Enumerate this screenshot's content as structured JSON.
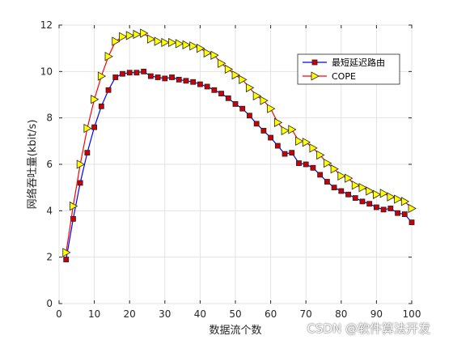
{
  "chart_data": {
    "type": "line",
    "title": "",
    "xlabel": "数据流个数",
    "ylabel": "网络吞吐量(kbit/s)",
    "xlim": [
      0,
      100
    ],
    "ylim": [
      0,
      12
    ],
    "xticks": [
      0,
      10,
      20,
      30,
      40,
      50,
      60,
      70,
      80,
      90,
      100
    ],
    "yticks": [
      0,
      2,
      4,
      6,
      8,
      10,
      12
    ],
    "grid": true,
    "legend_position": "top-right",
    "x": [
      2,
      4,
      6,
      8,
      10,
      12,
      14,
      16,
      18,
      20,
      22,
      24,
      26,
      28,
      30,
      32,
      34,
      36,
      38,
      40,
      42,
      44,
      46,
      48,
      50,
      52,
      54,
      56,
      58,
      60,
      62,
      64,
      66,
      68,
      70,
      72,
      74,
      76,
      78,
      80,
      82,
      84,
      86,
      88,
      90,
      92,
      94,
      96,
      98,
      100
    ],
    "series": [
      {
        "name": "最短延迟路由",
        "color": "#0000ff",
        "marker": "square",
        "marker_fill": "#cc0000",
        "values": [
          1.9,
          3.65,
          5.2,
          6.5,
          7.6,
          8.5,
          9.2,
          9.75,
          9.9,
          9.95,
          9.95,
          10.0,
          9.8,
          9.75,
          9.7,
          9.75,
          9.65,
          9.6,
          9.55,
          9.45,
          9.35,
          9.2,
          9.05,
          8.85,
          8.6,
          8.4,
          8.1,
          7.75,
          7.45,
          7.15,
          6.8,
          6.45,
          6.5,
          6.05,
          6.0,
          5.85,
          5.55,
          5.25,
          5.0,
          4.85,
          4.7,
          4.55,
          4.4,
          4.3,
          4.15,
          4.05,
          4.1,
          3.9,
          3.85,
          3.5
        ]
      },
      {
        "name": "COPE",
        "color": "#ff0000",
        "marker": "triangle-right",
        "marker_fill": "#ffff00",
        "values": [
          2.2,
          4.2,
          6.0,
          7.55,
          8.8,
          9.8,
          10.65,
          11.3,
          11.5,
          11.55,
          11.6,
          11.65,
          11.4,
          11.3,
          11.25,
          11.25,
          11.2,
          11.15,
          11.1,
          11.0,
          10.8,
          10.7,
          10.35,
          10.1,
          9.85,
          9.65,
          9.3,
          8.95,
          8.75,
          8.4,
          7.8,
          7.45,
          7.5,
          7.0,
          6.95,
          6.7,
          6.4,
          6.05,
          5.8,
          5.5,
          5.4,
          5.1,
          5.0,
          4.85,
          4.7,
          4.75,
          4.6,
          4.5,
          4.4,
          4.1
        ]
      }
    ]
  },
  "watermark": "CSDN @软件算法开发"
}
